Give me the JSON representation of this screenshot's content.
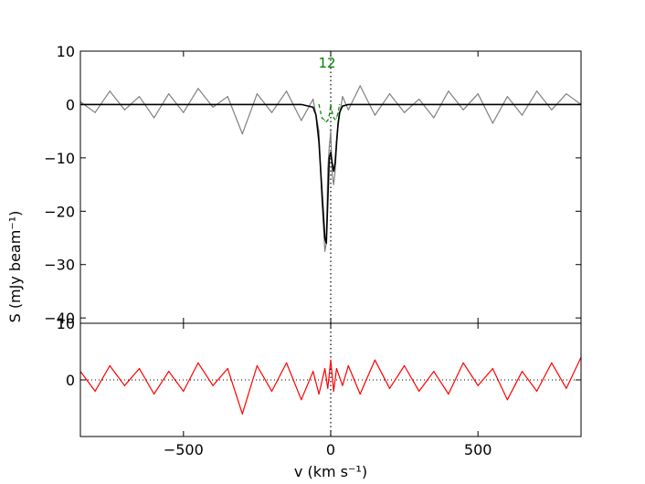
{
  "chart_data": [
    {
      "type": "line",
      "panel": "spectrum",
      "title": "",
      "ylabel": "S (mJy beam⁻¹)",
      "xlim": [
        -850,
        850
      ],
      "ylim": [
        -41,
        10
      ],
      "yticks": [
        -40,
        -30,
        -20,
        -10,
        0,
        10
      ],
      "ytick_labels": [
        "−40",
        "−30",
        "−20",
        "−10",
        "0",
        "10"
      ],
      "annotations": [
        "1",
        "2"
      ],
      "series": [
        {
          "role": "data",
          "color": "#808080",
          "x": [
            -850,
            -800,
            -750,
            -700,
            -650,
            -600,
            -550,
            -500,
            -450,
            -400,
            -350,
            -300,
            -250,
            -200,
            -150,
            -100,
            -60,
            -40,
            -30,
            -20,
            -15,
            -10,
            -5,
            0,
            5,
            10,
            15,
            20,
            25,
            30,
            40,
            60,
            100,
            150,
            200,
            250,
            300,
            350,
            400,
            450,
            500,
            550,
            600,
            650,
            700,
            750,
            800,
            850
          ],
          "y": [
            0.5,
            -1.5,
            2.5,
            -1.0,
            1.5,
            -2.5,
            2.0,
            -1.5,
            3.0,
            -0.5,
            1.5,
            -5.5,
            2.0,
            -1.5,
            2.5,
            -3.0,
            1.0,
            -5.0,
            -18.0,
            -27.5,
            -26.0,
            -12.0,
            -8.0,
            -5.0,
            -13.0,
            -15.0,
            -12.5,
            -8.0,
            -4.0,
            -2.0,
            1.5,
            -1.0,
            3.5,
            -2.0,
            2.0,
            -1.5,
            1.0,
            -2.5,
            2.5,
            -1.0,
            2.0,
            -3.5,
            1.5,
            -2.0,
            2.5,
            -1.0,
            2.0,
            0.0
          ]
        },
        {
          "role": "model",
          "color": "#000000",
          "x": [
            -850,
            -100,
            -60,
            -50,
            -40,
            -30,
            -20,
            -15,
            -10,
            -5,
            0,
            5,
            10,
            15,
            20,
            25,
            30,
            40,
            60,
            100,
            850
          ],
          "y": [
            0,
            0,
            -0.5,
            -2.0,
            -7.0,
            -16.0,
            -25.0,
            -26.0,
            -18.0,
            -10.0,
            -9.0,
            -11.0,
            -12.5,
            -11.0,
            -7.0,
            -3.5,
            -1.5,
            -0.3,
            0,
            0,
            0
          ]
        },
        {
          "role": "component-1",
          "color": "#008000",
          "x": [
            -40,
            -30,
            -20,
            -15,
            -10,
            -5,
            0
          ],
          "y": [
            0,
            -2.5,
            -3.0,
            -3.2,
            -3.0,
            -2.0,
            0
          ]
        },
        {
          "role": "component-2",
          "color": "#008000",
          "x": [
            0,
            5,
            10,
            15,
            20,
            25,
            30
          ],
          "y": [
            0,
            -1.5,
            -2.5,
            -2.8,
            -2.5,
            -1.5,
            0
          ]
        }
      ],
      "vline_x": 0
    },
    {
      "type": "line",
      "panel": "residuals",
      "title": "",
      "xlabel": "v (km s⁻¹)",
      "xlim": [
        -850,
        850
      ],
      "ylim": [
        -10,
        10
      ],
      "yticks": [
        0,
        10
      ],
      "ytick_labels": [
        "0",
        "10"
      ],
      "xticks": [
        -500,
        0,
        500
      ],
      "xtick_labels": [
        "−500",
        "0",
        "500"
      ],
      "series": [
        {
          "role": "residual",
          "color": "#ff0000",
          "x": [
            -850,
            -800,
            -750,
            -700,
            -650,
            -600,
            -550,
            -500,
            -450,
            -400,
            -350,
            -300,
            -250,
            -200,
            -150,
            -100,
            -60,
            -40,
            -20,
            -10,
            0,
            10,
            20,
            40,
            60,
            100,
            150,
            200,
            250,
            300,
            350,
            400,
            450,
            500,
            550,
            600,
            650,
            700,
            750,
            800,
            850
          ],
          "y": [
            1.5,
            -2.0,
            2.5,
            -1.0,
            2.0,
            -2.5,
            1.5,
            -2.0,
            3.0,
            -1.0,
            2.0,
            -6.0,
            2.5,
            -2.0,
            3.0,
            -3.5,
            1.5,
            -2.5,
            2.0,
            -1.5,
            3.5,
            -2.0,
            2.0,
            -1.0,
            2.5,
            -2.5,
            3.5,
            -1.5,
            2.5,
            -2.0,
            1.5,
            -2.5,
            3.0,
            -1.0,
            2.0,
            -3.5,
            1.5,
            -2.0,
            3.0,
            -1.5,
            4.0
          ]
        }
      ],
      "hline_y": 0,
      "vline_x": 0
    }
  ]
}
